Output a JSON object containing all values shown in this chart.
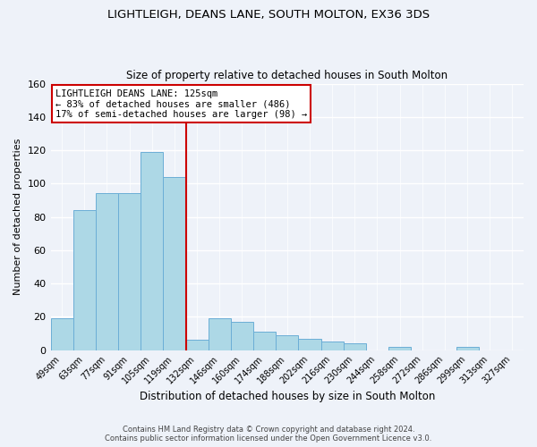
{
  "title": "LIGHTLEIGH, DEANS LANE, SOUTH MOLTON, EX36 3DS",
  "subtitle": "Size of property relative to detached houses in South Molton",
  "xlabel": "Distribution of detached houses by size in South Molton",
  "ylabel": "Number of detached properties",
  "footer_line1": "Contains HM Land Registry data © Crown copyright and database right 2024.",
  "footer_line2": "Contains public sector information licensed under the Open Government Licence v3.0.",
  "bar_labels": [
    "49sqm",
    "63sqm",
    "77sqm",
    "91sqm",
    "105sqm",
    "119sqm",
    "132sqm",
    "146sqm",
    "160sqm",
    "174sqm",
    "188sqm",
    "202sqm",
    "216sqm",
    "230sqm",
    "244sqm",
    "258sqm",
    "272sqm",
    "286sqm",
    "299sqm",
    "313sqm",
    "327sqm"
  ],
  "bar_heights": [
    19,
    84,
    94,
    94,
    119,
    104,
    6,
    19,
    17,
    11,
    9,
    7,
    5,
    4,
    0,
    2,
    0,
    0,
    2,
    0,
    0
  ],
  "bar_color": "#add8e6",
  "bar_edge_color": "#6baed6",
  "reference_line_bin": 6,
  "reference_line_color": "#cc0000",
  "annotation_title": "LIGHTLEIGH DEANS LANE: 125sqm",
  "annotation_line1": "← 83% of detached houses are smaller (486)",
  "annotation_line2": "17% of semi-detached houses are larger (98) →",
  "annotation_box_color": "#ffffff",
  "annotation_box_edge_color": "#cc0000",
  "bg_color": "#eef2f9",
  "plot_bg_color": "#eef2f9",
  "ylim": [
    0,
    160
  ],
  "yticks": [
    0,
    20,
    40,
    60,
    80,
    100,
    120,
    140,
    160
  ]
}
